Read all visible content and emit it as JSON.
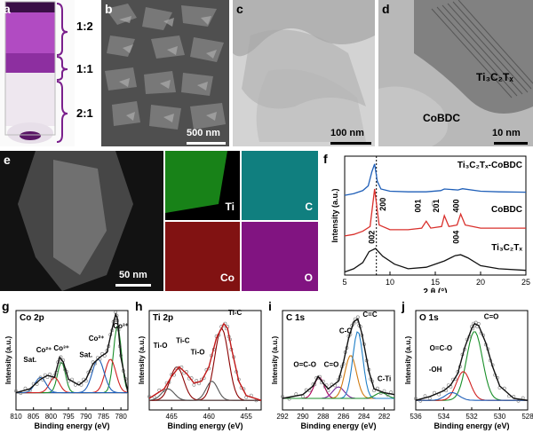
{
  "panel_labels": {
    "a": "a",
    "b": "b",
    "c": "c",
    "d": "d",
    "e": "e",
    "f": "f",
    "g": "g",
    "h": "h",
    "i": "i",
    "j": "j"
  },
  "a": {
    "ratios": [
      "1:2",
      "1:1",
      "2:1"
    ],
    "colors": {
      "purple": "#8b2c9a",
      "liquid": "#e7dfe9"
    }
  },
  "b": {
    "scalebar": "500 nm"
  },
  "c": {
    "scalebar": "100 nm"
  },
  "d": {
    "scalebar": "10 nm",
    "annotations": [
      "Ti₃C₂Tₓ",
      "CoBDC"
    ]
  },
  "e": {
    "scalebar": "50 nm",
    "maps": [
      {
        "label": "Ti",
        "color": "#22c022"
      },
      {
        "label": "C",
        "color": "#19c4c4"
      },
      {
        "label": "Co",
        "color": "#d21e1e"
      },
      {
        "label": "O",
        "color": "#c020c0"
      }
    ]
  },
  "f": {
    "ylabel": "Intensity (a.u.)",
    "xlabel": "2 θ (°)",
    "xticks": [
      "5",
      "10",
      "15",
      "20",
      "25"
    ],
    "series_labels": [
      "Ti₃C₂Tₓ-CoBDC",
      "CoBDC",
      "Ti₃C₂Tₓ"
    ],
    "peak_labels": [
      "200",
      "001",
      "20̅1",
      "400",
      "002",
      "004"
    ]
  },
  "chart_data": [
    {
      "type": "line",
      "title": "",
      "xlabel": "2 θ (°)",
      "ylabel": "Intensity (a.u.)",
      "xlim": [
        5,
        25
      ],
      "series": [
        {
          "name": "Ti₃C₂Tₓ-CoBDC",
          "color": "#1f5fb8",
          "x": [
            5,
            6,
            7,
            7.6,
            8,
            8.3,
            8.6,
            9,
            10,
            12,
            14,
            15.6,
            16,
            17.5,
            18,
            20,
            22,
            25
          ],
          "y": [
            2.55,
            2.6,
            2.7,
            2.85,
            3.3,
            3.55,
            3.0,
            2.75,
            2.68,
            2.66,
            2.66,
            2.7,
            2.75,
            2.72,
            2.76,
            2.68,
            2.66,
            2.65
          ]
        },
        {
          "name": "CoBDC",
          "color": "#d9302c",
          "x": [
            5,
            6,
            7,
            7.8,
            8.3,
            8.8,
            10,
            12,
            13.5,
            14,
            14.5,
            15.7,
            16,
            16.5,
            17.4,
            17.8,
            18.3,
            20,
            22,
            25
          ],
          "y": [
            1.25,
            1.3,
            1.4,
            1.55,
            2.75,
            1.6,
            1.45,
            1.45,
            1.5,
            1.72,
            1.5,
            1.55,
            1.9,
            1.55,
            1.6,
            1.95,
            1.6,
            1.5,
            1.5,
            1.5
          ]
        },
        {
          "name": "Ti₃C₂Tₓ",
          "color": "#111111",
          "x": [
            5,
            6,
            7,
            7.7,
            8.4,
            9.2,
            10.5,
            12,
            14,
            16,
            17.2,
            17.8,
            18.6,
            20,
            22,
            25
          ],
          "y": [
            0.1,
            0.2,
            0.4,
            0.75,
            0.85,
            0.6,
            0.35,
            0.2,
            0.25,
            0.45,
            0.62,
            0.65,
            0.55,
            0.3,
            0.2,
            0.15
          ]
        }
      ]
    },
    {
      "type": "line",
      "title": "Co 2p",
      "xlabel": "Binding energy (eV)",
      "ylabel": "Intensity (a.u.)",
      "xlim": [
        810,
        778
      ],
      "xticks": [
        "810",
        "805",
        "800",
        "795",
        "790",
        "785",
        "780"
      ],
      "peak_labels": [
        "Sat.",
        "Co²⁺",
        "Co³⁺",
        "Sat.",
        "Co²⁺",
        "Co³⁺"
      ],
      "series": [
        {
          "name": "fit",
          "color": "#111111",
          "x": [
            810,
            806,
            803,
            801,
            799,
            797.5,
            796.5,
            795,
            792,
            790,
            788,
            786,
            784,
            782.5,
            781.5,
            781,
            780,
            778
          ],
          "y": [
            0.18,
            0.22,
            0.32,
            0.36,
            0.34,
            0.55,
            0.5,
            0.32,
            0.26,
            0.32,
            0.48,
            0.55,
            0.6,
            0.85,
            1.0,
            0.95,
            0.55,
            0.18
          ]
        }
      ]
    },
    {
      "type": "line",
      "title": "Ti 2p",
      "xlabel": "Binding energy (eV)",
      "ylabel": "Intensity (a.u.)",
      "xlim": [
        468,
        453
      ],
      "xticks": [
        "465",
        "460",
        "455"
      ],
      "peak_labels": [
        "Ti-C",
        "Ti-O",
        "Ti-C",
        "Ti-O"
      ],
      "series": [
        {
          "name": "fit",
          "color": "#c01818",
          "x": [
            468,
            466,
            465,
            464,
            463,
            462,
            461,
            460,
            459,
            458,
            457.5,
            457,
            456,
            455,
            453
          ],
          "y": [
            0.12,
            0.22,
            0.35,
            0.45,
            0.38,
            0.28,
            0.3,
            0.45,
            0.75,
            0.9,
            0.85,
            0.65,
            0.3,
            0.15,
            0.1
          ]
        }
      ]
    },
    {
      "type": "line",
      "title": "C 1s",
      "xlabel": "Binding energy (eV)",
      "ylabel": "Intensity (a.u.)",
      "xlim": [
        292,
        281
      ],
      "xticks": [
        "292",
        "290",
        "288",
        "286",
        "284",
        "282"
      ],
      "peak_labels": [
        "O=C-O",
        "C=O",
        "C-C",
        "C=C",
        "C-Ti"
      ],
      "series": [
        {
          "name": "fit",
          "color": "#111111",
          "x": [
            292,
            290,
            289,
            288.5,
            288,
            287.5,
            286.5,
            286,
            285.5,
            285,
            284.6,
            284.2,
            283.5,
            283,
            282,
            281
          ],
          "y": [
            0.12,
            0.16,
            0.25,
            0.35,
            0.28,
            0.22,
            0.3,
            0.5,
            0.75,
            0.92,
            0.95,
            0.8,
            0.4,
            0.22,
            0.18,
            0.16
          ]
        }
      ]
    },
    {
      "type": "line",
      "title": "O 1s",
      "xlabel": "Binding energy (eV)",
      "ylabel": "Intensity (a.u.)",
      "xlim": [
        536,
        528
      ],
      "xticks": [
        "536",
        "534",
        "532",
        "530",
        "528"
      ],
      "peak_labels": [
        "C=O",
        "O=C-O",
        "-OH"
      ],
      "series": [
        {
          "name": "fit",
          "color": "#111111",
          "x": [
            536,
            535,
            534,
            533.5,
            533,
            532.5,
            532,
            531.8,
            531.5,
            531,
            530.5,
            530,
            529,
            528
          ],
          "y": [
            0.1,
            0.14,
            0.2,
            0.26,
            0.38,
            0.65,
            0.85,
            0.9,
            0.88,
            0.7,
            0.45,
            0.25,
            0.12,
            0.1
          ]
        }
      ]
    }
  ],
  "xps": {
    "g": {
      "title": "Co 2p",
      "ylabel": "Intensity (a.u.)",
      "xlabel": "Binding energy (eV)",
      "ticks": [
        "810",
        "805",
        "800",
        "795",
        "790",
        "785",
        "780"
      ],
      "labels": [
        "Sat.",
        "Co²⁺",
        "Co³⁺",
        "Sat.",
        "Co²⁺",
        "Co³⁺"
      ]
    },
    "h": {
      "title": "Ti 2p",
      "ylabel": "Intensity (a.u.)",
      "xlabel": "Binding energy (eV)",
      "ticks": [
        "465",
        "460",
        "455"
      ],
      "labels": [
        "Ti-C",
        "Ti-O",
        "Ti-C",
        "Ti-O"
      ]
    },
    "i": {
      "title": "C 1s",
      "ylabel": "Intensity (a.u.)",
      "xlabel": "Binding energy (eV)",
      "ticks": [
        "292",
        "290",
        "288",
        "286",
        "284",
        "282"
      ],
      "labels": [
        "O=C-O",
        "C=O",
        "C-C",
        "C=C",
        "C-Ti"
      ]
    },
    "j": {
      "title": "O 1s",
      "ylabel": "Intensity (a.u.)",
      "xlabel": "Binding energy (eV)",
      "ticks": [
        "536",
        "534",
        "532",
        "530",
        "528"
      ],
      "labels": [
        "C=O",
        "O=C-O",
        "-OH"
      ]
    }
  }
}
